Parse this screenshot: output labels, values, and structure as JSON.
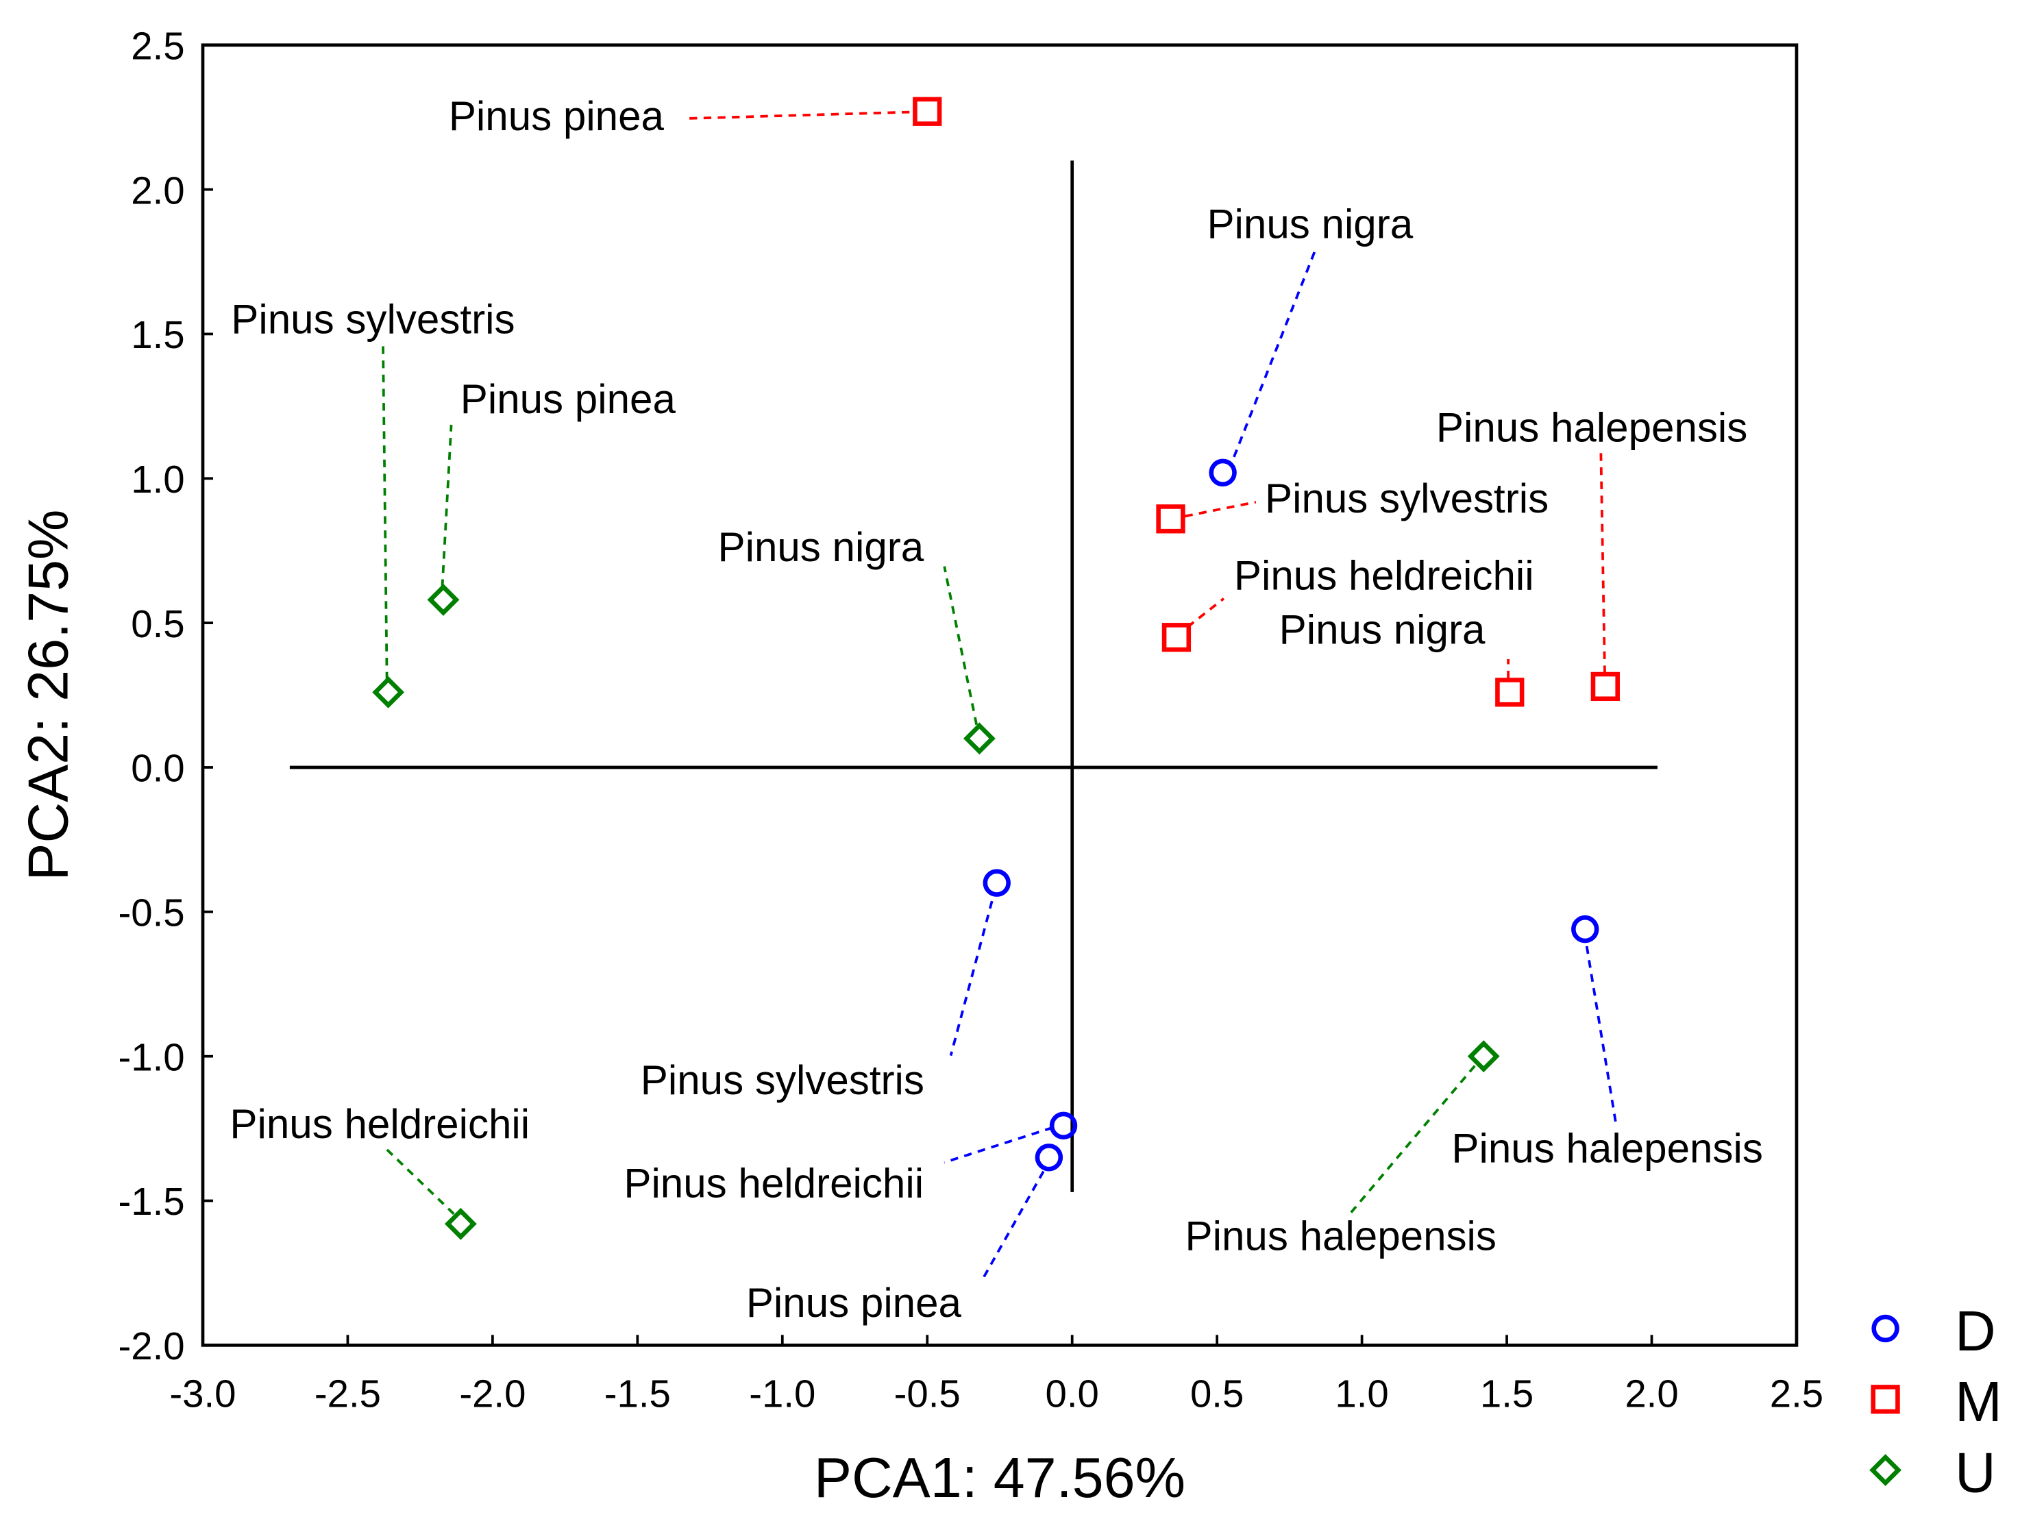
{
  "chart_data": {
    "type": "scatter",
    "title": "",
    "xlabel": "PCA1: 47.56%",
    "ylabel": "PCA2: 26.75%",
    "xlim": [
      -3.0,
      2.5
    ],
    "ylim": [
      -2.0,
      2.5
    ],
    "xticks": [
      "-3.0",
      "-2.5",
      "-2.0",
      "-1.5",
      "-1.0",
      "-0.5",
      "0.0",
      "0.5",
      "1.0",
      "1.5",
      "2.0",
      "2.5"
    ],
    "yticks": [
      "2.5",
      "2.0",
      "1.5",
      "1.0",
      "0.5",
      "0.0",
      "-0.5",
      "-1.0",
      "-1.5",
      "-2.0"
    ],
    "grid": false,
    "legend_placement": "bottom-right outside",
    "series": [
      {
        "name": "D",
        "marker": "circle",
        "color": "#0000ff",
        "points": [
          {
            "label": "Pinus nigra",
            "x": 0.52,
            "y": 1.02
          },
          {
            "label": "Pinus sylvestris",
            "x": -0.26,
            "y": -0.4
          },
          {
            "label": "Pinus halepensis",
            "x": 1.77,
            "y": -0.56
          },
          {
            "label": "Pinus heldreichii",
            "x": -0.03,
            "y": -1.24
          },
          {
            "label": "Pinus pinea",
            "x": -0.08,
            "y": -1.35
          }
        ]
      },
      {
        "name": "M",
        "marker": "square",
        "color": "#ff0000",
        "points": [
          {
            "label": "Pinus pinea",
            "x": -0.5,
            "y": 2.27
          },
          {
            "label": "Pinus sylvestris",
            "x": 0.34,
            "y": 0.86
          },
          {
            "label": "Pinus heldreichii",
            "x": 0.36,
            "y": 0.45
          },
          {
            "label": "Pinus nigra",
            "x": 1.51,
            "y": 0.26
          },
          {
            "label": "Pinus halepensis",
            "x": 1.84,
            "y": 0.28
          }
        ]
      },
      {
        "name": "U",
        "marker": "diamond",
        "color": "#008000",
        "points": [
          {
            "label": "Pinus sylvestris",
            "x": -2.36,
            "y": 0.26
          },
          {
            "label": "Pinus pinea",
            "x": -2.17,
            "y": 0.58
          },
          {
            "label": "Pinus nigra",
            "x": -0.32,
            "y": 0.1
          },
          {
            "label": "Pinus heldreichii",
            "x": -2.11,
            "y": -1.58
          },
          {
            "label": "Pinus halepensis",
            "x": 1.42,
            "y": -1.0
          }
        ]
      }
    ]
  }
}
